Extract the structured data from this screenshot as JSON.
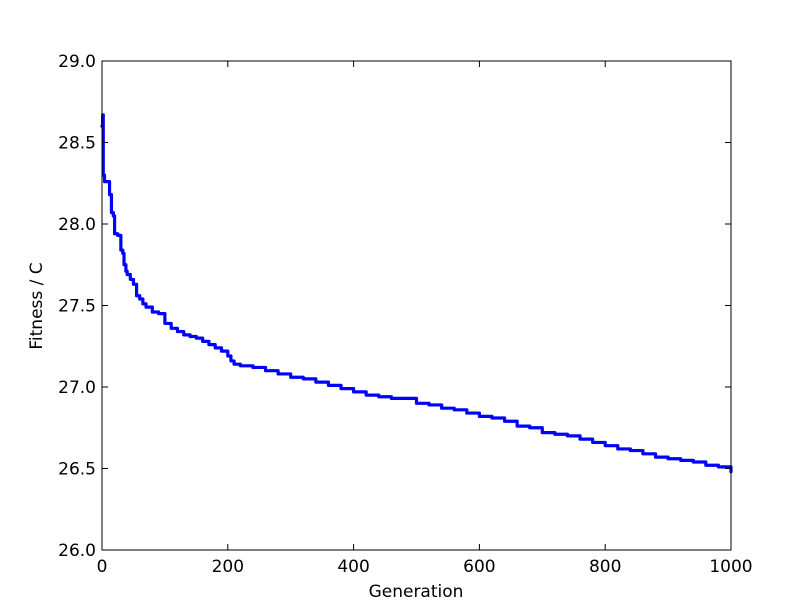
{
  "chart_data": {
    "type": "line",
    "title": "",
    "xlabel": "Generation",
    "ylabel": "Fitness / C",
    "xlim": [
      0,
      1000
    ],
    "ylim": [
      26.0,
      29.0
    ],
    "x_ticks": [
      0,
      200,
      400,
      600,
      800,
      1000
    ],
    "x_tick_labels": [
      "0",
      "200",
      "400",
      "600",
      "800",
      "1000"
    ],
    "y_ticks": [
      26.0,
      26.5,
      27.0,
      27.5,
      28.0,
      28.5,
      29.0
    ],
    "y_tick_labels": [
      "26.0",
      "26.5",
      "27.0",
      "27.5",
      "28.0",
      "28.5",
      "29.0"
    ],
    "grid": false,
    "legend": "none",
    "series": [
      {
        "color": "#0000ff",
        "x": [
          0,
          1,
          2,
          4,
          8,
          12,
          15,
          18,
          20,
          25,
          30,
          33,
          35,
          38,
          40,
          45,
          50,
          55,
          60,
          65,
          70,
          80,
          90,
          100,
          110,
          120,
          130,
          140,
          150,
          160,
          170,
          180,
          190,
          200,
          205,
          210,
          220,
          240,
          260,
          280,
          300,
          320,
          340,
          360,
          380,
          400,
          420,
          440,
          460,
          480,
          500,
          520,
          540,
          560,
          580,
          600,
          620,
          640,
          660,
          680,
          700,
          720,
          740,
          760,
          780,
          800,
          820,
          840,
          860,
          880,
          900,
          920,
          940,
          960,
          980,
          1000
        ],
        "y": [
          28.6,
          28.67,
          28.3,
          28.26,
          28.26,
          28.18,
          28.07,
          28.05,
          27.94,
          27.93,
          27.84,
          27.82,
          27.75,
          27.71,
          27.69,
          27.66,
          27.63,
          27.56,
          27.54,
          27.51,
          27.49,
          27.46,
          27.45,
          27.39,
          27.36,
          27.34,
          27.32,
          27.31,
          27.3,
          27.28,
          27.26,
          27.24,
          27.22,
          27.19,
          27.16,
          27.14,
          27.13,
          27.12,
          27.1,
          27.08,
          27.06,
          27.05,
          27.03,
          27.01,
          26.99,
          26.97,
          26.95,
          26.94,
          26.93,
          26.93,
          26.9,
          26.89,
          26.87,
          26.86,
          26.84,
          26.82,
          26.81,
          26.79,
          26.76,
          26.75,
          26.72,
          26.71,
          26.7,
          26.68,
          26.66,
          26.64,
          26.62,
          26.61,
          26.59,
          26.57,
          26.56,
          26.55,
          26.54,
          26.52,
          26.51,
          26.48
        ]
      }
    ]
  }
}
